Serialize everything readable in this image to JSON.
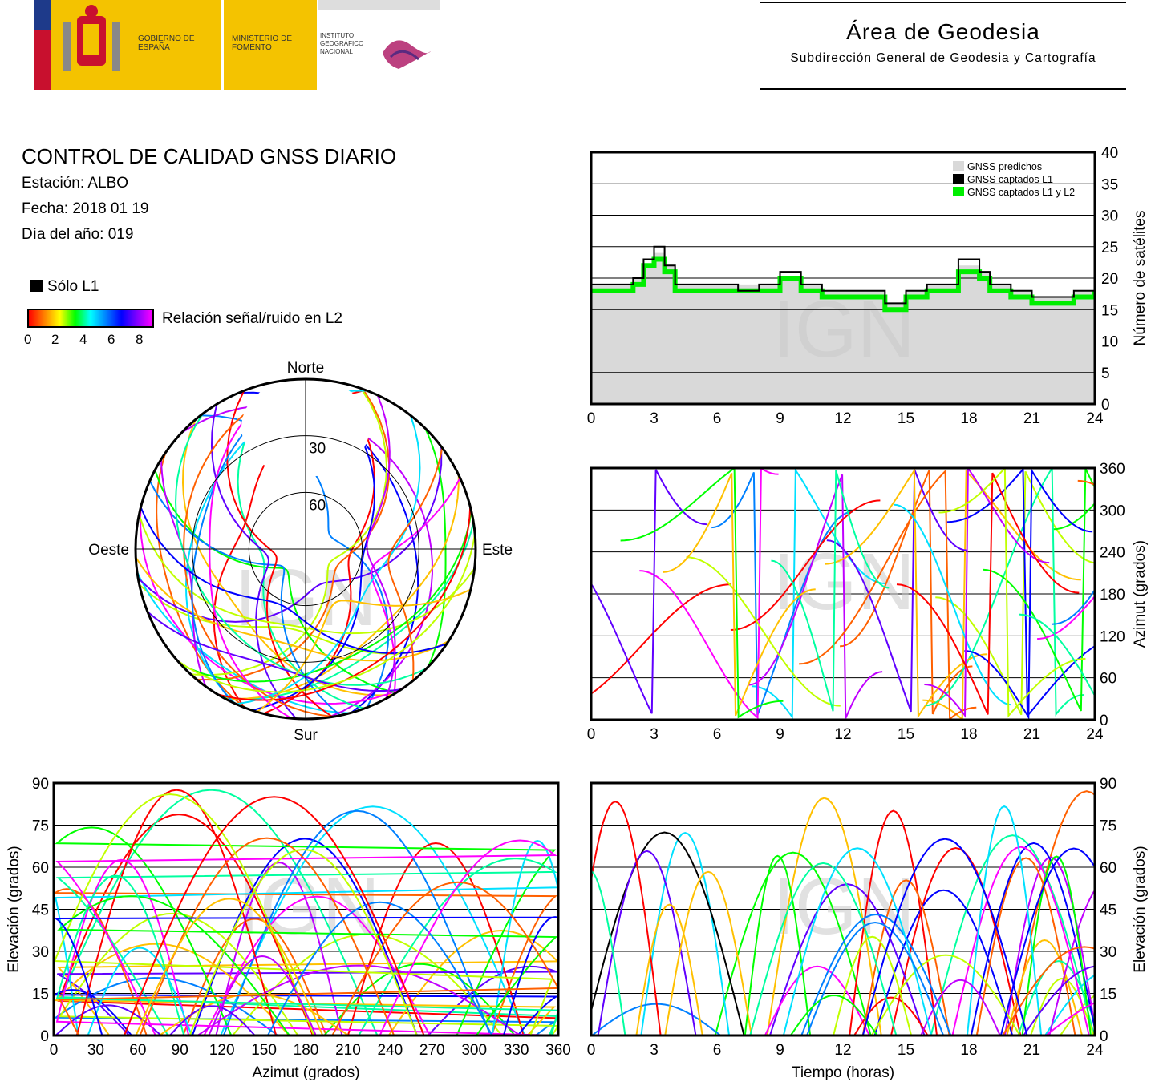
{
  "header": {
    "gobierno": "GOBIERNO DE ESPAÑA",
    "ministerio": "MINISTERIO DE FOMENTO",
    "instituto": "INSTITUTO GEOGRÁFICO NACIONAL",
    "area_title": "Área de Geodesia",
    "area_subtitle": "Subdirección General de Geodesia y Cartografía"
  },
  "info": {
    "title": "CONTROL DE CALIDAD GNSS DIARIO",
    "station": "Estación: ALBO",
    "date": "Fecha: 2018 01 19",
    "doy": "Día del año: 019"
  },
  "legend": {
    "solo_l1": "Sólo L1",
    "colorbar_label": "Relación señal/ruido en L2",
    "colorbar_ticks": [
      "0",
      "2",
      "4",
      "6",
      "8"
    ]
  },
  "watermark": "IGN",
  "colors": {
    "predicted": "#d9d9d9",
    "captured_l1": "#000000",
    "captured_l1_l2": "#00ee00",
    "plot_border": "#000000"
  },
  "chart_data": [
    {
      "type": "area",
      "id": "satellites",
      "ylabel": "Número de satélites",
      "xticks": [
        "0",
        "3",
        "6",
        "9",
        "12",
        "15",
        "18",
        "21",
        "24"
      ],
      "yticks": [
        "0",
        "5",
        "10",
        "15",
        "20",
        "25",
        "30",
        "35",
        "40"
      ],
      "xlim": [
        0,
        24
      ],
      "ylim": [
        0,
        40
      ],
      "grid": true,
      "legend_position": "top-right",
      "series": [
        {
          "name": "GNSS predichos",
          "x": [
            0,
            1,
            2,
            2.5,
            3,
            3.5,
            4,
            5,
            6,
            7,
            8,
            9,
            10,
            11,
            12,
            13,
            14,
            14.5,
            15,
            16,
            17,
            17.5,
            18,
            18.5,
            19,
            20,
            21,
            22,
            23,
            24
          ],
          "values": [
            19,
            19,
            20,
            22,
            24,
            22,
            19,
            19,
            19,
            19,
            19,
            20,
            19,
            18,
            18,
            18,
            16,
            16,
            18,
            19,
            19,
            22,
            22,
            21,
            19,
            18,
            17,
            17,
            18,
            19
          ]
        },
        {
          "name": "GNSS captados L1",
          "x": [
            0,
            1,
            2,
            2.5,
            3,
            3.5,
            4,
            5,
            6,
            7,
            8,
            9,
            10,
            11,
            12,
            13,
            14,
            14.5,
            15,
            16,
            17,
            17.5,
            18,
            18.5,
            19,
            20,
            21,
            22,
            23,
            24
          ],
          "values": [
            19,
            19,
            20,
            23,
            25,
            22,
            19,
            19,
            19,
            18,
            19,
            21,
            19,
            18,
            18,
            18,
            16,
            16,
            18,
            19,
            19,
            23,
            23,
            21,
            19,
            18,
            17,
            17,
            18,
            19
          ]
        },
        {
          "name": "GNSS captados L1 y L2",
          "x": [
            0,
            1,
            2,
            2.5,
            3,
            3.5,
            4,
            5,
            6,
            7,
            8,
            9,
            10,
            11,
            12,
            13,
            14,
            14.5,
            15,
            16,
            17,
            17.5,
            18,
            18.5,
            19,
            20,
            21,
            22,
            23,
            24
          ],
          "values": [
            18,
            18,
            19,
            22,
            23,
            21,
            18,
            18,
            18,
            18,
            18,
            20,
            18,
            17,
            17,
            17,
            15,
            15,
            17,
            18,
            18,
            21,
            21,
            20,
            18,
            17,
            16,
            16,
            17,
            18
          ]
        }
      ]
    },
    {
      "type": "scatter",
      "id": "skyplot",
      "labels": {
        "north": "Norte",
        "south": "Sur",
        "east": "Este",
        "west": "Oeste"
      },
      "rings": [
        "30",
        "60"
      ],
      "description_series": "satellite tracks coloured by L2 SNR"
    },
    {
      "type": "scatter",
      "id": "azimuth_time",
      "ylabel": "Azimut (grados)",
      "xticks": [
        "0",
        "3",
        "6",
        "9",
        "12",
        "15",
        "18",
        "21",
        "24"
      ],
      "yticks": [
        "0",
        "60",
        "120",
        "180",
        "240",
        "300",
        "360"
      ],
      "xlim": [
        0,
        24
      ],
      "ylim": [
        0,
        360
      ],
      "grid": true
    },
    {
      "type": "scatter",
      "id": "elevation_azimuth",
      "xlabel": "Azimut (grados)",
      "ylabel": "Elevación (grados)",
      "xticks": [
        "0",
        "30",
        "60",
        "90",
        "120",
        "150",
        "180",
        "210",
        "240",
        "270",
        "300",
        "330",
        "360"
      ],
      "yticks": [
        "0",
        "15",
        "30",
        "45",
        "60",
        "75",
        "90"
      ],
      "xlim": [
        0,
        360
      ],
      "ylim": [
        0,
        90
      ],
      "grid": true
    },
    {
      "type": "scatter",
      "id": "elevation_time",
      "xlabel": "Tiempo (horas)",
      "ylabel": "Elevación (grados)",
      "xticks": [
        "0",
        "3",
        "6",
        "9",
        "12",
        "15",
        "18",
        "21",
        "24"
      ],
      "yticks": [
        "0",
        "15",
        "30",
        "45",
        "60",
        "75",
        "90"
      ],
      "xlim": [
        0,
        24
      ],
      "ylim": [
        0,
        90
      ],
      "grid": true
    }
  ]
}
